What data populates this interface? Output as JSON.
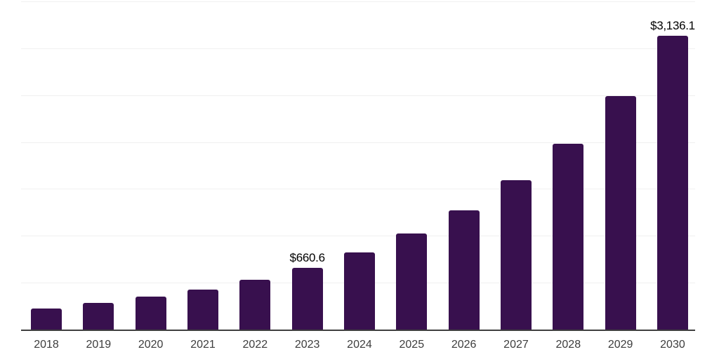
{
  "chart_data": {
    "type": "bar",
    "title": "",
    "xlabel": "",
    "ylabel": "",
    "categories": [
      "2018",
      "2019",
      "2020",
      "2021",
      "2022",
      "2023",
      "2024",
      "2025",
      "2026",
      "2027",
      "2028",
      "2029",
      "2030"
    ],
    "values": [
      228,
      283,
      355,
      430,
      535,
      660.6,
      825,
      1025,
      1275,
      1590,
      1985,
      2490,
      3136.1
    ],
    "data_labels": [
      {
        "index": 5,
        "text": "$660.6"
      },
      {
        "index": 12,
        "text": "$3,136.1"
      }
    ],
    "ylim": [
      0,
      3500
    ],
    "y_gridline_interval": 500,
    "grid": true,
    "legend": false,
    "y_axis_tick_labels_visible": false
  },
  "style": {
    "bar_color": "#38104e",
    "axis_color": "#3f3f3f",
    "gridline_color": "#f0f0f0",
    "value_label_color": "#000000",
    "tick_label_color": "#3d3d3d",
    "background_color": "#ffffff"
  }
}
